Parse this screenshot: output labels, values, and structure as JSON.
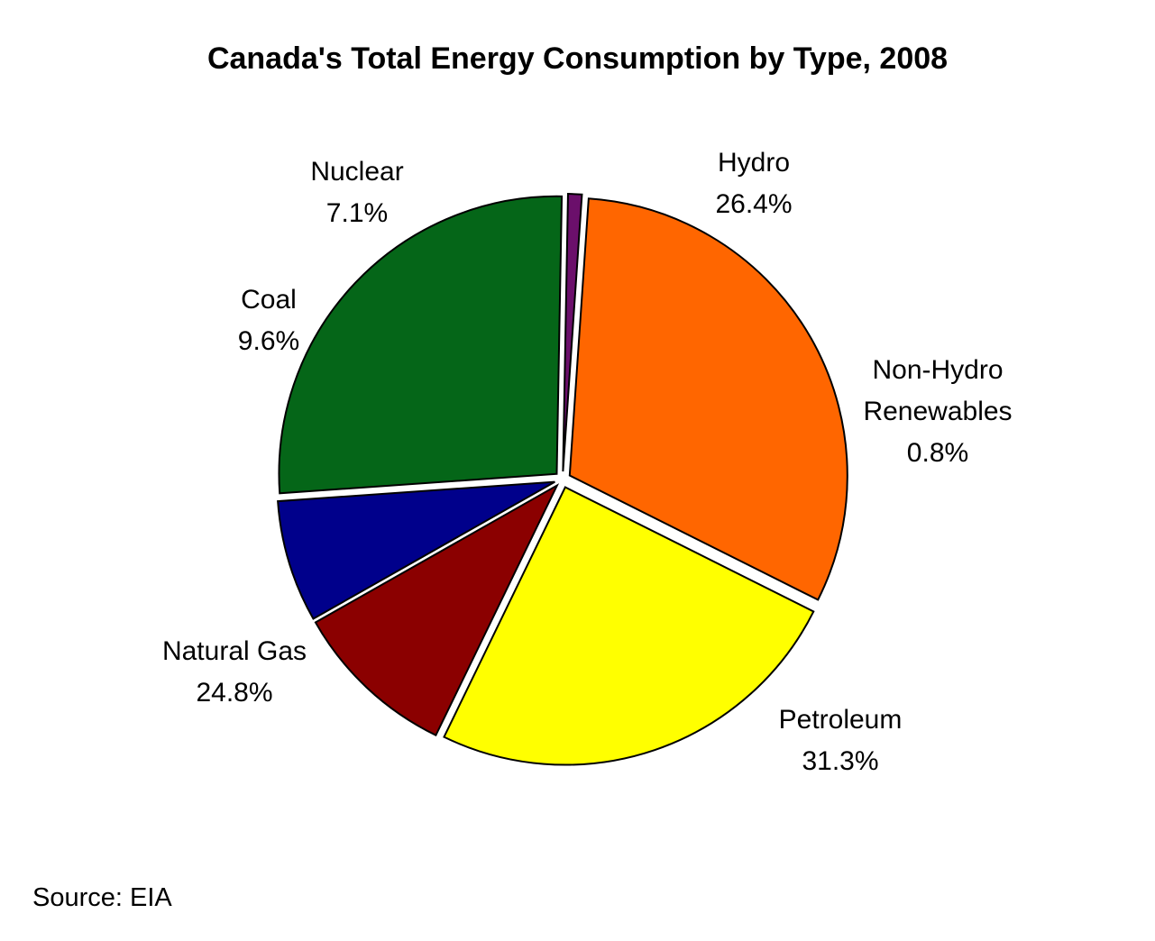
{
  "chart_data": {
    "type": "pie",
    "title": "Canada's Total Energy Consumption by Type, 2008",
    "source": "Source: EIA",
    "slices": [
      {
        "label": "Hydro",
        "value": 26.4,
        "value_label": "26.4%",
        "color": "#056618"
      },
      {
        "label": "Non-Hydro Renewables",
        "label_lines": [
          "Non-Hydro",
          "Renewables"
        ],
        "value": 0.8,
        "value_label": "0.8%",
        "color": "#6b0f6b"
      },
      {
        "label": "Petroleum",
        "value": 31.3,
        "value_label": "31.3%",
        "color": "#ff6600"
      },
      {
        "label": "Natural Gas",
        "value": 24.8,
        "value_label": "24.8%",
        "color": "#ffff00"
      },
      {
        "label": "Coal",
        "value": 9.6,
        "value_label": "9.6%",
        "color": "#8b0000"
      },
      {
        "label": "Nuclear",
        "value": 7.1,
        "value_label": "7.1%",
        "color": "#00008b"
      }
    ],
    "exploded": true
  }
}
